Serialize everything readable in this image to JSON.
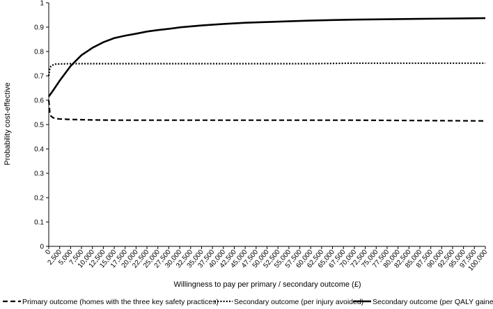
{
  "chart_data": {
    "type": "line",
    "xlabel": "Willingness to pay per primary / secondary outcome (£)",
    "ylabel": "Probability cost-effective",
    "xlim": [
      0,
      100000
    ],
    "ylim": [
      0,
      1
    ],
    "x_ticks": [
      "0",
      "2,500",
      "5,000",
      "7,500",
      "10,000",
      "12,500",
      "15,000",
      "17,500",
      "20,000",
      "22,500",
      "25,000",
      "27,500",
      "30,000",
      "32,500",
      "35,000",
      "37,500",
      "40,000",
      "42,500",
      "45,000",
      "47,500",
      "50,000",
      "52,500",
      "55,000",
      "57,500",
      "60,000",
      "62,500",
      "65,000",
      "67,500",
      "70,000",
      "72,500",
      "75,000",
      "77,500",
      "80,000",
      "82,500",
      "85,000",
      "87,500",
      "90,000",
      "92,500",
      "95,000",
      "97,500",
      "100,000"
    ],
    "y_ticks": [
      "0",
      "0.1",
      "0.2",
      "0.3",
      "0.4",
      "0.5",
      "0.6",
      "0.7",
      "0.8",
      "0.9",
      "1"
    ],
    "grid": false,
    "legend_position": "bottom",
    "series": [
      {
        "name": "Primary outcome (homes with the three key safety practices)",
        "style": "dashed",
        "color": "#000000",
        "x": [
          0,
          250,
          500,
          1000,
          1500,
          2500,
          5000,
          7500,
          10000,
          15000,
          20000,
          30000,
          40000,
          50000,
          60000,
          70000,
          80000,
          90000,
          100000
        ],
        "y": [
          0.6,
          0.55,
          0.535,
          0.528,
          0.525,
          0.523,
          0.521,
          0.52,
          0.519,
          0.518,
          0.518,
          0.518,
          0.518,
          0.518,
          0.518,
          0.518,
          0.517,
          0.516,
          0.515
        ]
      },
      {
        "name": "Secondary outcome (per injury avoided)",
        "style": "dotted",
        "color": "#000000",
        "x": [
          0,
          250,
          500,
          1000,
          1500,
          2500,
          5000,
          10000,
          20000,
          30000,
          40000,
          50000,
          60000,
          70000,
          80000,
          90000,
          100000
        ],
        "y": [
          0.7,
          0.73,
          0.74,
          0.745,
          0.748,
          0.749,
          0.75,
          0.75,
          0.75,
          0.75,
          0.75,
          0.75,
          0.75,
          0.752,
          0.752,
          0.752,
          0.752
        ]
      },
      {
        "name": "Secondary outcome (per QALY gained)",
        "style": "solid",
        "color": "#000000",
        "x": [
          0,
          1000,
          2500,
          5000,
          7500,
          10000,
          12500,
          15000,
          17500,
          20000,
          22500,
          25000,
          27500,
          30000,
          35000,
          40000,
          45000,
          50000,
          55000,
          60000,
          65000,
          70000,
          75000,
          80000,
          85000,
          90000,
          95000,
          100000
        ],
        "y": [
          0.615,
          0.64,
          0.68,
          0.74,
          0.785,
          0.815,
          0.838,
          0.855,
          0.865,
          0.873,
          0.882,
          0.888,
          0.893,
          0.899,
          0.907,
          0.913,
          0.918,
          0.921,
          0.924,
          0.927,
          0.929,
          0.931,
          0.932,
          0.933,
          0.934,
          0.935,
          0.936,
          0.937
        ]
      }
    ]
  }
}
